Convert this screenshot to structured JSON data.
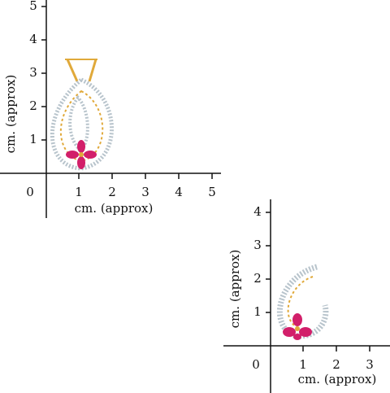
{
  "rulers": [
    {
      "x_label": "cm. (approx)",
      "y_label": "cm. (approx)",
      "x_ticks": [
        "0",
        "1",
        "2",
        "3",
        "4",
        "5"
      ],
      "y_ticks": [
        "1",
        "2",
        "3",
        "4",
        "5"
      ]
    },
    {
      "x_label": "cm. (approx)",
      "y_label": "cm. (approx)",
      "x_ticks": [
        "0",
        "1",
        "2",
        "3"
      ],
      "y_ticks": [
        "1",
        "2",
        "3",
        "4"
      ]
    }
  ]
}
